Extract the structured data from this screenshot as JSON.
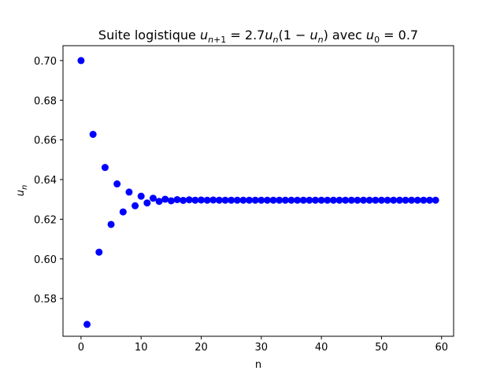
{
  "chart_data": {
    "type": "scatter",
    "title_text": "Suite logistique ",
    "title_formula": "u",
    "title_rest": "avec u",
    "xlabel": "n",
    "ylabel": "u",
    "ylabel_sub": "n",
    "xlim": [
      -3,
      62
    ],
    "ylim": [
      0.561,
      0.7075
    ],
    "xticks": [
      0,
      10,
      20,
      30,
      40,
      50,
      60
    ],
    "xtick_labels": [
      "0",
      "10",
      "20",
      "30",
      "40",
      "50",
      "60"
    ],
    "yticks": [
      0.58,
      0.6,
      0.62,
      0.64,
      0.66,
      0.68,
      0.7
    ],
    "ytick_labels": [
      "0.58",
      "0.60",
      "0.62",
      "0.64",
      "0.66",
      "0.68",
      "0.70"
    ],
    "grid": false,
    "marker_color": "#0000ff",
    "x": [
      0,
      1,
      2,
      3,
      4,
      5,
      6,
      7,
      8,
      9,
      10,
      11,
      12,
      13,
      14,
      15,
      16,
      17,
      18,
      19,
      20,
      21,
      22,
      23,
      24,
      25,
      26,
      27,
      28,
      29,
      30,
      31,
      32,
      33,
      34,
      35,
      36,
      37,
      38,
      39,
      40,
      41,
      42,
      43,
      44,
      45,
      46,
      47,
      48,
      49,
      50,
      51,
      52,
      53,
      54,
      55,
      56,
      57,
      58,
      59
    ],
    "y": [
      0.7,
      0.567,
      0.6628,
      0.6034,
      0.6461,
      0.6174,
      0.6378,
      0.6237,
      0.6337,
      0.6268,
      0.6316,
      0.6282,
      0.6306,
      0.629,
      0.6301,
      0.6293,
      0.6299,
      0.6295,
      0.6298,
      0.6296,
      0.6297,
      0.6296,
      0.6297,
      0.6296,
      0.6296,
      0.6296,
      0.6296,
      0.6296,
      0.6296,
      0.6296,
      0.6296,
      0.6296,
      0.6296,
      0.6296,
      0.6296,
      0.6296,
      0.6296,
      0.6296,
      0.6296,
      0.6296,
      0.6296,
      0.6296,
      0.6296,
      0.6296,
      0.6296,
      0.6296,
      0.6296,
      0.6296,
      0.6296,
      0.6296,
      0.6296,
      0.6296,
      0.6296,
      0.6296,
      0.6296,
      0.6296,
      0.6296,
      0.6296,
      0.6296,
      0.6296
    ]
  }
}
